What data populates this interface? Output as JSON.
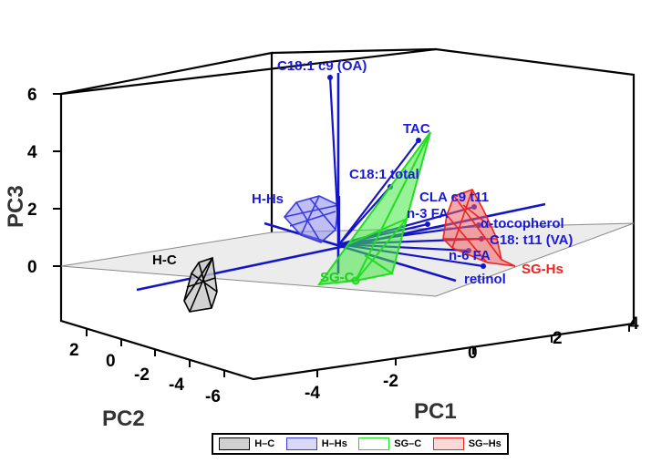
{
  "chart_data": {
    "type": "scatter",
    "subtype": "3d-pca-biplot",
    "axes": {
      "x": {
        "label": "PC1",
        "ticks": [
          "-4",
          "-2",
          "0",
          "2",
          "4"
        ]
      },
      "y": {
        "label": "PC2",
        "ticks": [
          "2",
          "0",
          "-2",
          "-4",
          "-6"
        ]
      },
      "z": {
        "label": "PC3",
        "ticks": [
          "6",
          "4",
          "2",
          "0"
        ]
      }
    },
    "loadings": [
      {
        "label": "C18:1 c9 (OA)"
      },
      {
        "label": "TAC"
      },
      {
        "label": "C18:1 total"
      },
      {
        "label": "CLA c9 t11"
      },
      {
        "label": "n-3 FA"
      },
      {
        "label": "α-tocopherol"
      },
      {
        "label": "C18: t11 (VA)"
      },
      {
        "label": "n-6 FA"
      },
      {
        "label": "retinol"
      }
    ],
    "groups": [
      {
        "name": "H-C",
        "color": "#000000",
        "fill": "#c8c8c8"
      },
      {
        "name": "H-Hs",
        "color": "#3a3ae0",
        "fill": "#8a8aee"
      },
      {
        "name": "SG-C",
        "color": "#22dd22",
        "fill": "#44e844"
      },
      {
        "name": "SG-Hs",
        "color": "#ee2222",
        "fill": "#f06060"
      }
    ],
    "legend": [
      {
        "label": "H–C",
        "color": "#000000",
        "fill": "#d0d0d0"
      },
      {
        "label": "H–Hs",
        "color": "#3a3ae0",
        "fill": "#d8d8f8"
      },
      {
        "label": "SG–C",
        "color": "#22dd22",
        "fill": "#ffffff"
      },
      {
        "label": "SG–Hs",
        "color": "#ee2222",
        "fill": "#fbd8d8"
      }
    ]
  }
}
